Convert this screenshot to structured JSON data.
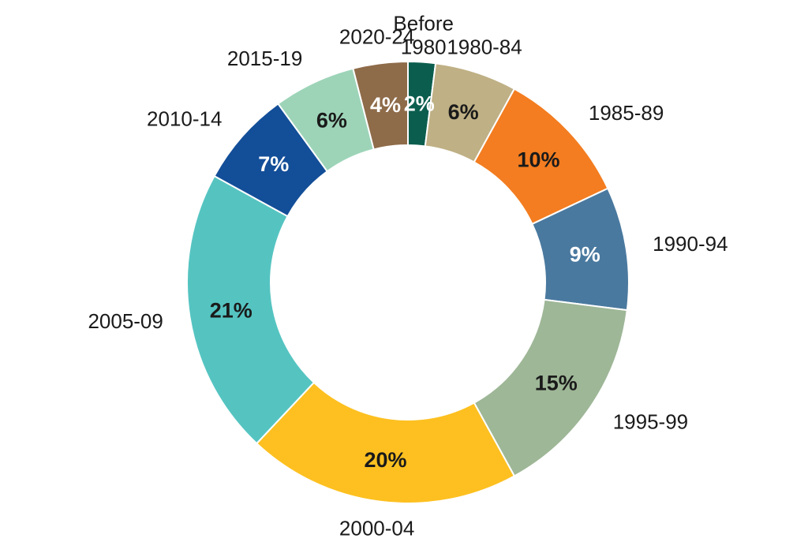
{
  "chart_data": {
    "type": "pie",
    "style": "donut",
    "slices": [
      {
        "category": "Before 1980",
        "label_lines": [
          "Before",
          "1980"
        ],
        "value": 2,
        "value_label": "2%",
        "color": "#0b5e4e",
        "value_text_color": "#ffffff"
      },
      {
        "category": "1980-84",
        "label_lines": [
          "1980-84"
        ],
        "value": 6,
        "value_label": "6%",
        "color": "#bfb085",
        "value_text_color": "#1a1a1a"
      },
      {
        "category": "1985-89",
        "label_lines": [
          "1985-89"
        ],
        "value": 10,
        "value_label": "10%",
        "color": "#f37d20",
        "value_text_color": "#1a1a1a"
      },
      {
        "category": "1990-94",
        "label_lines": [
          "1990-94"
        ],
        "value": 9,
        "value_label": "9%",
        "color": "#4a799f",
        "value_text_color": "#ffffff"
      },
      {
        "category": "1995-99",
        "label_lines": [
          "1995-99"
        ],
        "value": 15,
        "value_label": "15%",
        "color": "#9eb797",
        "value_text_color": "#1a1a1a"
      },
      {
        "category": "2000-04",
        "label_lines": [
          "2000-04"
        ],
        "value": 20,
        "value_label": "20%",
        "color": "#fdc020",
        "value_text_color": "#1a1a1a"
      },
      {
        "category": "2005-09",
        "label_lines": [
          "2005-09"
        ],
        "value": 21,
        "value_label": "21%",
        "color": "#55c4c1",
        "value_text_color": "#1a1a1a"
      },
      {
        "category": "2010-14",
        "label_lines": [
          "2010-14"
        ],
        "value": 7,
        "value_label": "7%",
        "color": "#134e98",
        "value_text_color": "#ffffff"
      },
      {
        "category": "2015-19",
        "label_lines": [
          "2015-19"
        ],
        "value": 6,
        "value_label": "6%",
        "color": "#9dd4b8",
        "value_text_color": "#1a1a1a"
      },
      {
        "category": "2020-24",
        "label_lines": [
          "2020-24"
        ],
        "value": 4,
        "value_label": "4%",
        "color": "#8e6b49",
        "value_text_color": "#ffffff"
      }
    ],
    "start": "12 o'clock",
    "direction": "clockwise",
    "legend": "none"
  }
}
